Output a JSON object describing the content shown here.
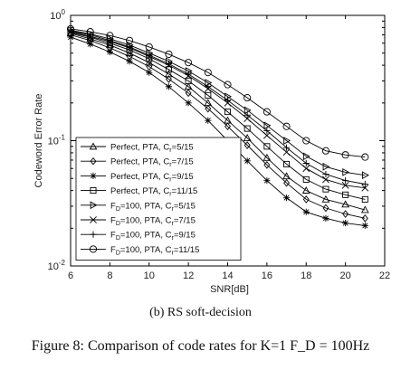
{
  "caption": {
    "sub": "(b) RS soft-decision",
    "figure": "Figure 8: Comparison of code rates for K=1 F_D = 100Hz"
  },
  "chart_data": {
    "type": "line",
    "title": "",
    "xlabel": "SNR[dB]",
    "ylabel": "Codeword Error Rate",
    "xlim": [
      6,
      22
    ],
    "ylim": [
      0.01,
      1
    ],
    "yscale": "log",
    "xticks": [
      6,
      8,
      10,
      12,
      14,
      16,
      18,
      20,
      22
    ],
    "ytick_labels": [
      {
        "base": "10",
        "exp": "0",
        "value": 1
      },
      {
        "base": "10",
        "exp": "-1",
        "value": 0.1
      },
      {
        "base": "10",
        "exp": "-2",
        "value": 0.01
      }
    ],
    "grid": false,
    "legend_position": "lower-left",
    "x": [
      6,
      7,
      8,
      9,
      10,
      11,
      12,
      13,
      14,
      15,
      16,
      17,
      18,
      19,
      20,
      21
    ],
    "series": [
      {
        "name": "Perfect, PTA, C_r=5/15",
        "marker": "triangle-up",
        "values": [
          0.72,
          0.65,
          0.58,
          0.5,
          0.42,
          0.34,
          0.27,
          0.2,
          0.145,
          0.105,
          0.073,
          0.052,
          0.04,
          0.034,
          0.031,
          0.028
        ]
      },
      {
        "name": "Perfect, PTA, C_r=7/15",
        "marker": "diamond",
        "values": [
          0.7,
          0.63,
          0.55,
          0.47,
          0.39,
          0.31,
          0.24,
          0.18,
          0.13,
          0.092,
          0.064,
          0.046,
          0.034,
          0.029,
          0.026,
          0.024
        ]
      },
      {
        "name": "Perfect, PTA, C_r=9/15",
        "marker": "star",
        "values": [
          0.67,
          0.59,
          0.51,
          0.43,
          0.35,
          0.27,
          0.2,
          0.145,
          0.1,
          0.069,
          0.048,
          0.035,
          0.027,
          0.024,
          0.022,
          0.021
        ]
      },
      {
        "name": "Perfect, PTA, C_r=11/15",
        "marker": "square",
        "values": [
          0.73,
          0.67,
          0.6,
          0.53,
          0.45,
          0.37,
          0.3,
          0.23,
          0.17,
          0.125,
          0.09,
          0.065,
          0.049,
          0.041,
          0.037,
          0.034
        ]
      },
      {
        "name": "F_D=100, PTA, C_r=5/15",
        "marker": "triangle-right",
        "values": [
          0.76,
          0.71,
          0.65,
          0.58,
          0.5,
          0.43,
          0.36,
          0.29,
          0.225,
          0.175,
          0.132,
          0.1,
          0.075,
          0.062,
          0.056,
          0.053
        ]
      },
      {
        "name": "F_D=100, PTA, C_r=7/15",
        "marker": "x",
        "values": [
          0.74,
          0.68,
          0.62,
          0.55,
          0.47,
          0.4,
          0.33,
          0.26,
          0.2,
          0.15,
          0.11,
          0.081,
          0.06,
          0.049,
          0.044,
          0.042
        ]
      },
      {
        "name": "F_D=100, PTA, C_r=9/15",
        "marker": "plus",
        "values": [
          0.75,
          0.7,
          0.63,
          0.56,
          0.48,
          0.41,
          0.34,
          0.27,
          0.21,
          0.16,
          0.12,
          0.088,
          0.066,
          0.054,
          0.048,
          0.045
        ]
      },
      {
        "name": "F_D=100, PTA, C_r=11/15",
        "marker": "circle",
        "values": [
          0.78,
          0.74,
          0.69,
          0.63,
          0.56,
          0.49,
          0.42,
          0.35,
          0.28,
          0.22,
          0.17,
          0.13,
          0.1,
          0.083,
          0.077,
          0.074
        ]
      }
    ]
  }
}
